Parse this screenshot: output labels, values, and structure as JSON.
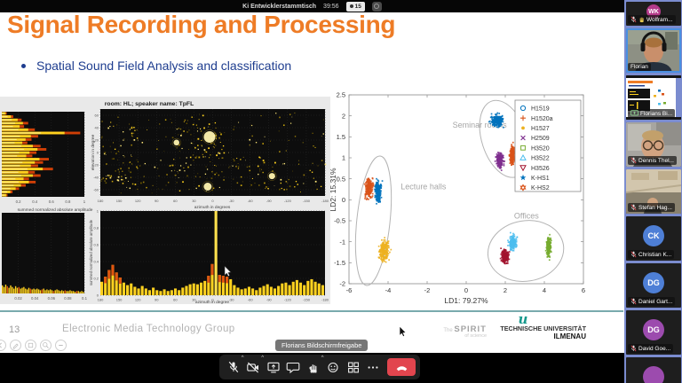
{
  "window": {
    "topbar": {
      "meeting_title": "Ki Entwicklerstammtisch",
      "timer": "39:56",
      "participant_count": "15"
    },
    "share_banner": "Florians Bildschirmfreigabe",
    "toolbar_icons": [
      "mic-off",
      "video-off",
      "share-screen",
      "chat",
      "raise-hand",
      "reactions",
      "apps",
      "more",
      "end-call"
    ]
  },
  "slide": {
    "title": "Signal Recording and Processing",
    "bullet": "Spatial Sound Field Analysis and classification",
    "page_number": "13",
    "footer_group": "Electronic Media Technology Group",
    "spirit_the": "The",
    "spirit_main": "SPIRIT",
    "spirit_sub": "of science",
    "logo_glyph": "u",
    "university_name": "TECHNISCHE UNIVERSITÄT",
    "university_city": "ILMENAU",
    "accent_orange": "#EE7C26",
    "accent_blue": "#1E3D8F",
    "divider_teal": "#79AAAD"
  },
  "participants": [
    {
      "name": "Wolfram...",
      "kind": "avatar",
      "initials": "WK",
      "avatar_color": "#b43a8a",
      "muted": true,
      "hand": true,
      "small": true
    },
    {
      "name": "Florian",
      "kind": "video",
      "scene": "florian",
      "active": true
    },
    {
      "name": "Florians Bi...",
      "kind": "share",
      "share_icon": true
    },
    {
      "name": "Dennis Thel...",
      "kind": "video",
      "scene": "dennis",
      "muted": true
    },
    {
      "name": "Stefan Hag...",
      "kind": "video",
      "scene": "stefan",
      "muted": true
    },
    {
      "name": "Christian K...",
      "kind": "avatar",
      "initials": "CK",
      "avatar_color": "#4e7fd6",
      "muted": true
    },
    {
      "name": "Daniel Gart...",
      "kind": "avatar",
      "initials": "DG",
      "avatar_color": "#4e7fd6",
      "muted": true
    },
    {
      "name": "David Goe...",
      "kind": "avatar",
      "initials": "DG",
      "avatar_color": "#9c4bae",
      "muted": true
    },
    {
      "name": "",
      "kind": "avatar",
      "initials": "",
      "avatar_color": "#9c4bae",
      "partial": true
    }
  ],
  "chart_data": [
    {
      "id": "lda-scatter",
      "type": "scatter",
      "xlabel": "LD1: 79.27%",
      "ylabel": "LD2: 15.31%",
      "xlim": [
        -6,
        6
      ],
      "ylim": [
        -2,
        2.5
      ],
      "xticks": [
        -6,
        -4,
        -2,
        0,
        2,
        4,
        6
      ],
      "yticks": [
        -2,
        -1.5,
        -1,
        -0.5,
        0,
        0.5,
        1,
        1.5,
        2,
        2.5
      ],
      "grid": false,
      "legend_position": "top-right",
      "series": [
        {
          "name": "H1519",
          "marker": "o",
          "color": "#0072BD",
          "center": [
            1.55,
            1.9
          ],
          "spread": [
            0.42,
            0.18
          ],
          "n": 230
        },
        {
          "name": "H1520a",
          "marker": "+",
          "color": "#D95319",
          "center": [
            2.32,
            1.08
          ],
          "spread": [
            0.16,
            0.27
          ],
          "n": 210
        },
        {
          "name": "H1527",
          "marker": ".",
          "color": "#EDB120",
          "center": [
            -4.25,
            -1.2
          ],
          "spread": [
            0.33,
            0.32
          ],
          "n": 230
        },
        {
          "name": "H2509",
          "marker": "x",
          "color": "#7E2F8E",
          "center": [
            1.68,
            0.95
          ],
          "spread": [
            0.22,
            0.22
          ],
          "n": 210
        },
        {
          "name": "H3520",
          "marker": "s",
          "color": "#77AC30",
          "center": [
            4.18,
            -1.1
          ],
          "spread": [
            0.14,
            0.3
          ],
          "n": 190
        },
        {
          "name": "H3522",
          "marker": "^",
          "color": "#4DBEEE",
          "center": [
            2.35,
            -1.0
          ],
          "spread": [
            0.24,
            0.22
          ],
          "n": 200
        },
        {
          "name": "H3526",
          "marker": "v",
          "color": "#A2142F",
          "center": [
            1.95,
            -1.35
          ],
          "spread": [
            0.24,
            0.2
          ],
          "n": 200
        },
        {
          "name": "K-HS1",
          "marker": "star",
          "color": "#0072BD",
          "center": [
            -4.55,
            0.22
          ],
          "spread": [
            0.2,
            0.3
          ],
          "n": 210
        },
        {
          "name": "K-HS2",
          "marker": "hexagram",
          "color": "#D95319",
          "center": [
            -5.02,
            0.3
          ],
          "spread": [
            0.24,
            0.28
          ],
          "n": 230
        }
      ],
      "annotations": [
        {
          "label": "Seminar rooms",
          "text_pos": [
            -0.7,
            1.72
          ],
          "ellipse": {
            "center": [
              1.95,
              1.45
            ],
            "rx": 1.15,
            "ry": 0.95,
            "rotation": -18
          }
        },
        {
          "label": "Lecture halls",
          "text_pos": [
            -3.35,
            0.25
          ],
          "ellipse": {
            "center": [
              -4.75,
              -0.5
            ],
            "rx": 0.85,
            "ry": 1.55,
            "rotation": 6
          }
        },
        {
          "label": "Offices",
          "text_pos": [
            2.45,
            -0.45
          ],
          "ellipse": {
            "center": [
              3.05,
              -1.22
            ],
            "rx": 1.95,
            "ry": 0.72,
            "rotation": -10
          }
        }
      ]
    },
    {
      "id": "room-figure",
      "type": "multi-panel",
      "title": "room: HL; speaker name: TpFL",
      "panels": [
        {
          "id": "summed-amplitude-by-elevation",
          "type": "barh",
          "xlabel": "summed normalized absolute amplitude",
          "xticks": [
            0.2,
            0.4,
            0.6,
            0.8,
            1
          ],
          "xlim": [
            0,
            1
          ],
          "values": [
            0.06,
            0.14,
            0.24,
            0.32,
            0.27,
            0.4,
            0.95,
            0.44,
            0.36,
            0.31,
            0.47,
            0.54,
            0.42,
            0.37,
            0.57,
            0.5,
            0.44,
            0.62,
            0.4,
            0.47,
            0.33,
            0.41,
            0.29,
            0.21,
            0.13,
            0.07
          ]
        },
        {
          "id": "azimuth-elevation-scatter",
          "type": "scatter",
          "xlabel": "azimuth in degrees",
          "ylabel": "elevation in degree",
          "xticks": [
            180,
            150,
            120,
            90,
            60,
            30,
            0,
            -30,
            -60,
            -90,
            -120,
            -150,
            -180
          ],
          "yticks": [
            60,
            40,
            20,
            0,
            -20,
            -40,
            -60
          ],
          "xlim": [
            180,
            -180
          ],
          "ylim": [
            -70,
            70
          ],
          "background_points": 380,
          "highlight_points": [
            {
              "azimuth": 5,
              "elevation": 25,
              "weight": 1.0
            },
            {
              "azimuth": 8,
              "elevation": -55,
              "weight": 0.6
            },
            {
              "azimuth": -95,
              "elevation": -38,
              "weight": 0.4
            },
            {
              "azimuth": 58,
              "elevation": 16,
              "weight": 0.35
            }
          ]
        },
        {
          "id": "time-amplitude",
          "type": "bar",
          "xlabel": "time in s",
          "xticks": [
            0.02,
            0.04,
            0.06,
            0.08,
            0.1
          ],
          "xlim": [
            0,
            0.1
          ],
          "values": [
            0.1,
            0.08,
            0.11,
            0.09,
            0.07,
            0.1,
            0.08,
            0.06,
            0.09,
            0.07,
            0.08,
            0.06,
            0.07,
            0.08,
            0.06,
            0.05,
            0.07,
            0.06,
            0.05,
            0.06,
            0.05,
            0.06,
            0.05,
            0.04,
            0.05,
            0.06,
            0.04,
            0.05,
            0.04,
            0.05,
            0.04,
            0.03,
            0.04,
            0.05,
            0.04,
            0.03,
            0.04,
            0.03,
            0.04,
            0.03,
            0.03,
            0.04,
            0.03,
            0.03,
            0.02,
            0.03,
            0.03,
            0.02,
            0.03,
            0.02
          ]
        },
        {
          "id": "summed-amplitude-by-azimuth",
          "type": "bar",
          "xlabel": "azimuth in degree",
          "ylabel": "summed normalized absolute amplitude",
          "xticks": [
            180,
            150,
            120,
            90,
            60,
            30,
            0,
            -30,
            -60,
            -90,
            -120,
            -150,
            -180
          ],
          "yticks": [
            0,
            0.2,
            0.4,
            0.6,
            0.8,
            1
          ],
          "xlim": [
            180,
            -180
          ],
          "ylim": [
            0,
            1
          ],
          "values": [
            0.16,
            0.22,
            0.3,
            0.36,
            0.27,
            0.21,
            0.15,
            0.12,
            0.14,
            0.1,
            0.08,
            0.11,
            0.08,
            0.06,
            0.09,
            0.06,
            0.05,
            0.07,
            0.05,
            0.06,
            0.08,
            0.06,
            0.09,
            0.11,
            0.13,
            0.14,
            0.13,
            0.15,
            0.17,
            0.23,
            0.37,
            1.0,
            0.24,
            0.23,
            0.22,
            0.19,
            0.12,
            0.09,
            0.07,
            0.08,
            0.1,
            0.08,
            0.06,
            0.09,
            0.11,
            0.13,
            0.1,
            0.08,
            0.11,
            0.14,
            0.15,
            0.12,
            0.16,
            0.18,
            0.15,
            0.12,
            0.17,
            0.19,
            0.16,
            0.14,
            0.12
          ]
        }
      ]
    }
  ]
}
